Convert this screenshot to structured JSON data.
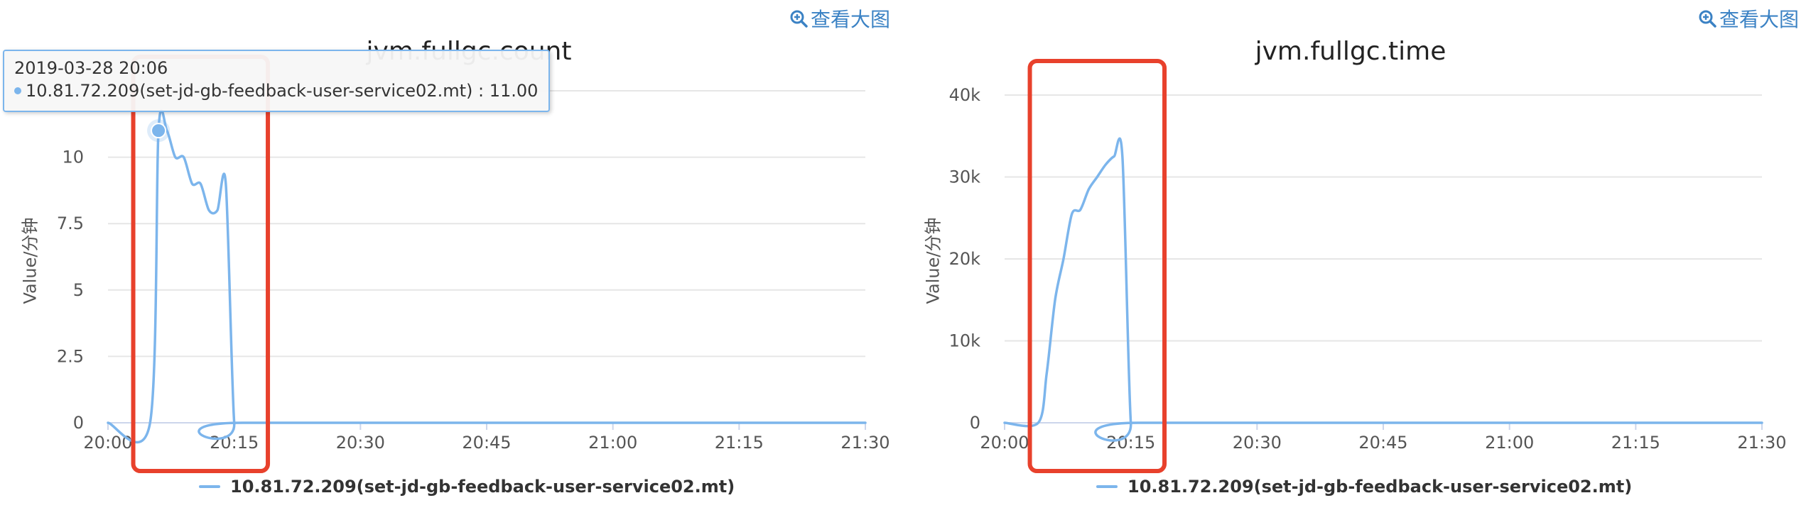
{
  "zoom_label": "查看大图",
  "charts": [
    {
      "title": "jvm.fullgc.count",
      "ylabel": "Value/分钟",
      "legend": "10.81.72.209(set-jd-gb-feedback-user-service02.mt)"
    },
    {
      "title": "jvm.fullgc.time",
      "ylabel": "Value/分钟",
      "legend": "10.81.72.209(set-jd-gb-feedback-user-service02.mt)"
    }
  ],
  "tooltip": {
    "time": "2019-03-28 20:06",
    "text": "10.81.72.209(set-jd-gb-feedback-user-service02.mt) : 11.00"
  },
  "colors": {
    "series": "#7cb5ec",
    "highlight_box": "#e8412c",
    "grid": "#e6e6e6"
  },
  "chart_data": [
    {
      "type": "line",
      "title": "jvm.fullgc.count",
      "ylabel": "Value/分钟",
      "xlabel": "",
      "x_ticks": [
        "20:00",
        "20:15",
        "20:30",
        "20:45",
        "21:00",
        "21:15",
        "21:30"
      ],
      "y_ticks": [
        "0",
        "2.5",
        "5",
        "7.5",
        "10"
      ],
      "xlim_minutes": [
        0,
        90
      ],
      "ylim": [
        0,
        12.5
      ],
      "grid": true,
      "legend_position": "bottom",
      "highlight_range_minutes": [
        3,
        19
      ],
      "series": [
        {
          "name": "10.81.72.209(set-jd-gb-feedback-user-service02.mt)",
          "x_minutes": [
            0,
            5,
            6,
            7,
            8,
            9,
            10,
            11,
            12,
            13,
            14,
            15,
            16,
            90
          ],
          "values": [
            0,
            0,
            11,
            11,
            10,
            10,
            9,
            9,
            8,
            8,
            9,
            0,
            0,
            0
          ]
        }
      ],
      "tooltip_point": {
        "x_minutes": 6,
        "value": 11
      }
    },
    {
      "type": "line",
      "title": "jvm.fullgc.time",
      "ylabel": "Value/分钟",
      "xlabel": "",
      "x_ticks": [
        "20:00",
        "20:15",
        "20:30",
        "20:45",
        "21:00",
        "21:15",
        "21:30"
      ],
      "y_ticks": [
        "0",
        "10k",
        "20k",
        "30k",
        "40k"
      ],
      "xlim_minutes": [
        0,
        90
      ],
      "ylim": [
        0,
        40000
      ],
      "grid": true,
      "legend_position": "bottom",
      "highlight_range_minutes": [
        3,
        19
      ],
      "series": [
        {
          "name": "10.81.72.209(set-jd-gb-feedback-user-service02.mt)",
          "x_minutes": [
            0,
            4,
            5,
            6,
            7,
            8,
            9,
            10,
            11,
            12,
            13,
            14,
            15,
            16,
            90
          ],
          "values": [
            0,
            0,
            6000,
            15000,
            20000,
            25500,
            26000,
            28500,
            30000,
            31500,
            32500,
            32500,
            0,
            0,
            0
          ]
        }
      ]
    }
  ]
}
